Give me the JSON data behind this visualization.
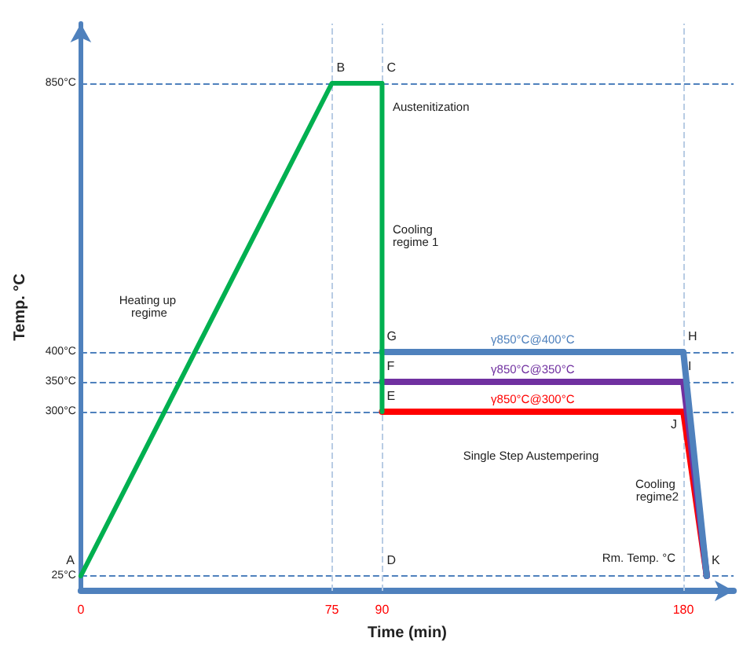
{
  "chart_data": {
    "type": "line",
    "xlabel": "Time (min)",
    "ylabel": "Temp. °C",
    "xlim": [
      0,
      195
    ],
    "ylim": [
      0,
      950
    ],
    "xticks": [
      0,
      75,
      90,
      180
    ],
    "yticks": [
      {
        "value": 25,
        "label": "25°C"
      },
      {
        "value": 300,
        "label": "300°C"
      },
      {
        "value": 350,
        "label": "350°C"
      },
      {
        "value": 400,
        "label": "400°C"
      },
      {
        "value": 850,
        "label": "850°C"
      }
    ],
    "grid": false,
    "legend": false,
    "marker": "none",
    "line_style": "solid",
    "series": [
      {
        "color": "#00b050",
        "x": [
          0,
          75,
          90,
          90
        ],
        "values": [
          25,
          850,
          850,
          300
        ]
      },
      {
        "name": "γ850°C@400°C",
        "color": "#4f81bd",
        "x": [
          90,
          180,
          187
        ],
        "values": [
          400,
          400,
          25
        ]
      },
      {
        "name": "γ850°C@350°C",
        "color": "#7030a0",
        "x": [
          90,
          180,
          187
        ],
        "values": [
          350,
          350,
          25
        ]
      },
      {
        "name": "γ850°C@300°C",
        "color": "#ff0000",
        "x": [
          90,
          180,
          187
        ],
        "values": [
          300,
          300,
          25
        ]
      }
    ],
    "ref_lines": [
      {
        "axis": "y",
        "value": 850,
        "color": "#4f81bd",
        "line_style": "dashed"
      },
      {
        "axis": "y",
        "value": 400,
        "color": "#4f81bd",
        "line_style": "dashed"
      },
      {
        "axis": "y",
        "value": 350,
        "color": "#4f81bd",
        "line_style": "dashed"
      },
      {
        "axis": "y",
        "value": 300,
        "color": "#4f81bd",
        "line_style": "dashed"
      },
      {
        "axis": "y",
        "value": 25,
        "color": "#4f81bd",
        "line_style": "dashed"
      },
      {
        "axis": "x",
        "value": 75,
        "color": "#b8cce4",
        "line_style": "dashed"
      },
      {
        "axis": "x",
        "value": 90,
        "color": "#b8cce4",
        "line_style": "dashed"
      },
      {
        "axis": "x",
        "value": 180,
        "color": "#b8cce4",
        "line_style": "dashed"
      }
    ],
    "annotations": [
      {
        "text": "A",
        "x": 0,
        "y": 25
      },
      {
        "text": "B",
        "x": 75,
        "y": 850
      },
      {
        "text": "C",
        "x": 90,
        "y": 850
      },
      {
        "text": "D",
        "x": 90,
        "y": 25
      },
      {
        "text": "E",
        "x": 90,
        "y": 300
      },
      {
        "text": "F",
        "x": 90,
        "y": 350
      },
      {
        "text": "G",
        "x": 90,
        "y": 400
      },
      {
        "text": "H",
        "x": 180,
        "y": 400
      },
      {
        "text": "I",
        "x": 180,
        "y": 350
      },
      {
        "text": "J",
        "x": 180,
        "y": 300
      },
      {
        "text": "K",
        "x": 187,
        "y": 25
      },
      "Austenitization",
      "Cooling regime 1",
      "Heating up regime",
      "Single Step Austempering",
      "Cooling regime2",
      "Rm. Temp. °C"
    ]
  }
}
